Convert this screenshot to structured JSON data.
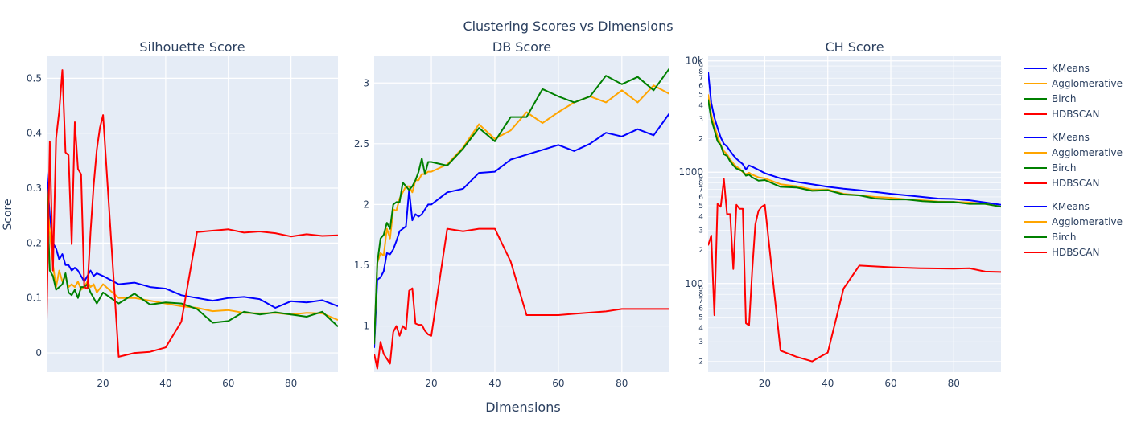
{
  "figure": {
    "title": "Clustering Scores vs Dimensions",
    "xlabel": "Dimensions",
    "ylabel": "Score"
  },
  "colors": {
    "KMeans": "#0000ff",
    "Agglomerative": "#ffa500",
    "Birch": "#008000",
    "HDBSCAN": "#ff0000",
    "plot_bg": "#e5ecf6",
    "grid": "#ffffff"
  },
  "legend": {
    "placement": "right",
    "groups": [
      [
        "KMeans",
        "Agglomerative",
        "Birch",
        "HDBSCAN"
      ],
      [
        "KMeans",
        "Agglomerative",
        "Birch",
        "HDBSCAN"
      ],
      [
        "KMeans",
        "Agglomerative",
        "Birch",
        "HDBSCAN"
      ]
    ]
  },
  "chart_data": [
    {
      "type": "line",
      "title": "Silhouette Score",
      "xlabel": "",
      "ylabel": "Score",
      "xlim": [
        2,
        95
      ],
      "ylim": [
        -0.035,
        0.54
      ],
      "xticks": [
        20,
        40,
        60,
        80
      ],
      "yticks": [
        0,
        0.1,
        0.2,
        0.3,
        0.4,
        0.5
      ],
      "ytick_labels": [
        "0",
        "0.1",
        "0.2",
        "0.3",
        "0.4",
        "0.5"
      ],
      "grid": true,
      "series": [
        {
          "name": "KMeans",
          "x": [
            2,
            3,
            4,
            5,
            6,
            7,
            8,
            9,
            10,
            11,
            12,
            13,
            14,
            15,
            16,
            17,
            18,
            20,
            25,
            30,
            35,
            40,
            45,
            50,
            55,
            60,
            65,
            70,
            75,
            80,
            85,
            90,
            95
          ],
          "y": [
            0.33,
            0.25,
            0.2,
            0.19,
            0.17,
            0.18,
            0.16,
            0.16,
            0.15,
            0.155,
            0.15,
            0.14,
            0.13,
            0.14,
            0.15,
            0.14,
            0.145,
            0.14,
            0.125,
            0.128,
            0.12,
            0.117,
            0.105,
            0.1,
            0.095,
            0.1,
            0.102,
            0.098,
            0.082,
            0.094,
            0.092,
            0.096,
            0.085
          ]
        },
        {
          "name": "Agglomerative",
          "x": [
            2,
            3,
            4,
            5,
            6,
            7,
            8,
            9,
            10,
            11,
            12,
            13,
            14,
            15,
            16,
            17,
            18,
            20,
            25,
            30,
            35,
            40,
            45,
            50,
            55,
            60,
            65,
            70,
            75,
            80,
            85,
            90,
            95
          ],
          "y": [
            0.3,
            0.22,
            0.16,
            0.12,
            0.15,
            0.13,
            0.14,
            0.12,
            0.125,
            0.12,
            0.13,
            0.115,
            0.12,
            0.13,
            0.12,
            0.125,
            0.11,
            0.125,
            0.1,
            0.1,
            0.095,
            0.09,
            0.085,
            0.082,
            0.076,
            0.078,
            0.073,
            0.072,
            0.073,
            0.07,
            0.073,
            0.072,
            0.06
          ]
        },
        {
          "name": "Birch",
          "x": [
            2,
            3,
            4,
            5,
            6,
            7,
            8,
            9,
            10,
            11,
            12,
            13,
            14,
            15,
            16,
            17,
            18,
            20,
            25,
            30,
            35,
            40,
            45,
            50,
            55,
            60,
            65,
            70,
            75,
            80,
            85,
            90,
            95
          ],
          "y": [
            0.3,
            0.15,
            0.14,
            0.115,
            0.12,
            0.125,
            0.145,
            0.11,
            0.105,
            0.115,
            0.1,
            0.12,
            0.12,
            0.125,
            0.11,
            0.1,
            0.09,
            0.11,
            0.09,
            0.108,
            0.088,
            0.092,
            0.09,
            0.08,
            0.055,
            0.058,
            0.075,
            0.07,
            0.074,
            0.07,
            0.066,
            0.075,
            0.048
          ]
        },
        {
          "name": "HDBSCAN",
          "x": [
            2,
            3,
            4,
            5,
            6,
            7,
            8,
            9,
            10,
            11,
            12,
            13,
            14,
            15,
            16,
            17,
            18,
            19,
            20,
            25,
            30,
            35,
            40,
            45,
            50,
            60,
            65,
            70,
            75,
            80,
            85,
            90,
            95
          ],
          "y": [
            0.06,
            0.385,
            0.15,
            0.39,
            0.44,
            0.515,
            0.365,
            0.36,
            0.198,
            0.42,
            0.335,
            0.325,
            0.12,
            0.117,
            0.22,
            0.305,
            0.37,
            0.41,
            0.433,
            -0.007,
            0,
            0.002,
            0.01,
            0.057,
            0.22,
            0.225,
            0.219,
            0.221,
            0.218,
            0.212,
            0.216,
            0.213,
            0.214
          ]
        }
      ]
    },
    {
      "type": "line",
      "title": "DB Score",
      "xlabel": "",
      "ylabel": "",
      "xlim": [
        2,
        95
      ],
      "ylim": [
        0.62,
        3.22
      ],
      "xticks": [
        20,
        40,
        60,
        80
      ],
      "yticks": [
        1,
        1.5,
        2,
        2.5,
        3
      ],
      "ytick_labels": [
        "1",
        "1.5",
        "2",
        "2.5",
        "3"
      ],
      "grid": true,
      "series": [
        {
          "name": "KMeans",
          "x": [
            2,
            3,
            4,
            5,
            6,
            7,
            8,
            9,
            10,
            11,
            12,
            13,
            14,
            15,
            16,
            17,
            18,
            19,
            20,
            25,
            30,
            35,
            40,
            45,
            50,
            55,
            60,
            65,
            70,
            75,
            80,
            85,
            90,
            95
          ],
          "y": [
            0.82,
            1.38,
            1.4,
            1.45,
            1.6,
            1.59,
            1.63,
            1.7,
            1.78,
            1.8,
            1.82,
            2.12,
            1.87,
            1.92,
            1.9,
            1.92,
            1.96,
            2.0,
            2.0,
            2.1,
            2.13,
            2.26,
            2.27,
            2.37,
            2.41,
            2.45,
            2.49,
            2.44,
            2.5,
            2.59,
            2.56,
            2.62,
            2.57,
            2.75
          ]
        },
        {
          "name": "Agglomerative",
          "x": [
            2,
            3,
            4,
            5,
            6,
            7,
            8,
            9,
            10,
            11,
            12,
            13,
            14,
            15,
            16,
            17,
            18,
            19,
            20,
            25,
            30,
            35,
            40,
            45,
            50,
            55,
            60,
            65,
            70,
            75,
            80,
            85,
            90,
            95
          ],
          "y": [
            0.85,
            1.52,
            1.6,
            1.58,
            1.8,
            1.72,
            1.96,
            1.95,
            2.05,
            2.1,
            2.15,
            2.15,
            2.1,
            2.2,
            2.2,
            2.25,
            2.25,
            2.27,
            2.27,
            2.33,
            2.47,
            2.66,
            2.54,
            2.61,
            2.76,
            2.67,
            2.76,
            2.84,
            2.89,
            2.84,
            2.94,
            2.84,
            2.98,
            2.91
          ]
        },
        {
          "name": "Birch",
          "x": [
            2,
            3,
            4,
            5,
            6,
            7,
            8,
            9,
            10,
            11,
            12,
            13,
            14,
            15,
            16,
            17,
            18,
            19,
            20,
            25,
            30,
            35,
            40,
            45,
            50,
            55,
            60,
            65,
            70,
            75,
            80,
            85,
            90,
            95
          ],
          "y": [
            0.85,
            1.52,
            1.72,
            1.75,
            1.85,
            1.8,
            2.0,
            2.02,
            2.02,
            2.18,
            2.15,
            2.12,
            2.15,
            2.2,
            2.27,
            2.38,
            2.25,
            2.35,
            2.35,
            2.32,
            2.46,
            2.63,
            2.52,
            2.72,
            2.72,
            2.95,
            2.89,
            2.84,
            2.89,
            3.06,
            2.99,
            3.05,
            2.94,
            3.12
          ]
        },
        {
          "name": "HDBSCAN",
          "x": [
            2,
            3,
            4,
            5,
            6,
            7,
            8,
            9,
            10,
            11,
            12,
            13,
            14,
            15,
            16,
            17,
            18,
            19,
            20,
            25,
            30,
            35,
            40,
            45,
            50,
            55,
            60,
            65,
            70,
            75,
            80,
            85,
            90,
            95
          ],
          "y": [
            0.77,
            0.65,
            0.87,
            0.77,
            0.73,
            0.69,
            0.95,
            1.0,
            0.92,
            1.0,
            0.97,
            1.29,
            1.31,
            1.02,
            1.01,
            1.01,
            0.96,
            0.93,
            0.92,
            1.8,
            1.78,
            1.8,
            1.8,
            1.53,
            1.09,
            1.09,
            1.09,
            1.1,
            1.11,
            1.12,
            1.14,
            1.14,
            1.14,
            1.14
          ]
        }
      ]
    },
    {
      "type": "line",
      "title": "CH Score",
      "xlabel": "",
      "ylabel": "",
      "yscale": "log",
      "xlim": [
        2,
        95
      ],
      "ylim": [
        16,
        11000
      ],
      "xticks": [
        20,
        40,
        60,
        80
      ],
      "yticks": [
        100,
        1000,
        10000
      ],
      "ytick_labels": [
        "100",
        "1000",
        "10k"
      ],
      "minor_tick_labels": [
        "2",
        "3",
        "4",
        "5",
        "6",
        "7",
        "8",
        "9"
      ],
      "grid": true,
      "series": [
        {
          "name": "KMeans",
          "x": [
            2,
            3,
            4,
            5,
            6,
            7,
            8,
            9,
            10,
            11,
            12,
            13,
            14,
            15,
            16,
            18,
            20,
            25,
            30,
            35,
            40,
            45,
            50,
            55,
            60,
            65,
            70,
            75,
            80,
            85,
            90,
            95
          ],
          "y": [
            8000,
            4200,
            3100,
            2500,
            2050,
            1800,
            1700,
            1550,
            1420,
            1320,
            1250,
            1180,
            1060,
            1150,
            1120,
            1050,
            980,
            880,
            820,
            780,
            740,
            710,
            690,
            665,
            640,
            620,
            600,
            580,
            575,
            560,
            535,
            510
          ]
        },
        {
          "name": "Agglomerative",
          "x": [
            2,
            3,
            4,
            5,
            6,
            7,
            8,
            9,
            10,
            11,
            12,
            13,
            14,
            15,
            16,
            18,
            20,
            25,
            30,
            35,
            40,
            45,
            50,
            55,
            60,
            65,
            70,
            75,
            80,
            85,
            90,
            95
          ],
          "y": [
            5000,
            3300,
            2600,
            2100,
            1750,
            1550,
            1450,
            1300,
            1200,
            1120,
            1080,
            1000,
            960,
            990,
            950,
            900,
            880,
            780,
            750,
            700,
            700,
            640,
            620,
            600,
            590,
            570,
            560,
            545,
            540,
            535,
            520,
            490
          ]
        },
        {
          "name": "Birch",
          "x": [
            2,
            3,
            4,
            5,
            6,
            7,
            8,
            9,
            10,
            11,
            12,
            13,
            14,
            15,
            16,
            18,
            20,
            25,
            30,
            35,
            40,
            45,
            50,
            55,
            60,
            65,
            70,
            75,
            80,
            85,
            90,
            95
          ],
          "y": [
            4500,
            3000,
            2400,
            1900,
            1750,
            1450,
            1400,
            1250,
            1150,
            1080,
            1050,
            1020,
            930,
            950,
            900,
            840,
            850,
            740,
            730,
            680,
            690,
            630,
            620,
            580,
            570,
            570,
            550,
            540,
            540,
            520,
            520,
            490
          ]
        },
        {
          "name": "HDBSCAN",
          "x": [
            2,
            3,
            4,
            5,
            6,
            7,
            8,
            9,
            10,
            11,
            12,
            13,
            14,
            15,
            16,
            17,
            18,
            19,
            20,
            25,
            30,
            35,
            40,
            45,
            50,
            60,
            70,
            80,
            85,
            90,
            95
          ],
          "y": [
            220,
            270,
            52,
            520,
            490,
            870,
            420,
            420,
            135,
            510,
            470,
            470,
            44,
            42,
            130,
            340,
            450,
            490,
            510,
            25,
            22,
            20,
            24,
            90,
            145,
            140,
            137,
            136,
            137,
            128,
            127
          ]
        }
      ]
    }
  ]
}
